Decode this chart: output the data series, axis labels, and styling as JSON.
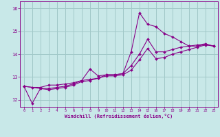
{
  "xlabel": "Windchill (Refroidissement éolien,°C)",
  "bg_color": "#c8e8e8",
  "grid_color": "#a0c8c8",
  "line_color": "#880088",
  "xlim": [
    -0.5,
    23.5
  ],
  "ylim": [
    11.7,
    16.3
  ],
  "yticks": [
    12,
    13,
    14,
    15,
    16
  ],
  "xticks": [
    0,
    1,
    2,
    3,
    4,
    5,
    6,
    7,
    8,
    9,
    10,
    11,
    12,
    13,
    14,
    15,
    16,
    17,
    18,
    19,
    20,
    21,
    22,
    23
  ],
  "series1_x": [
    0,
    1,
    2,
    3,
    4,
    5,
    6,
    7,
    8,
    9,
    10,
    11,
    12,
    13,
    14,
    15,
    16,
    17,
    18,
    19,
    20,
    21,
    22,
    23
  ],
  "series1_y": [
    12.6,
    12.55,
    12.55,
    12.65,
    12.65,
    12.7,
    12.75,
    12.85,
    13.35,
    13.05,
    13.1,
    13.1,
    13.15,
    14.1,
    15.8,
    15.3,
    15.2,
    14.9,
    14.75,
    14.55,
    14.35,
    14.4,
    14.45,
    14.35
  ],
  "series2_x": [
    0,
    1,
    2,
    3,
    4,
    5,
    6,
    7,
    8,
    9,
    10,
    11,
    12,
    13,
    14,
    15,
    16,
    17,
    18,
    19,
    20,
    21,
    22,
    23
  ],
  "series2_y": [
    12.6,
    11.85,
    12.5,
    12.45,
    12.5,
    12.55,
    12.65,
    12.8,
    12.85,
    12.95,
    13.05,
    13.05,
    13.1,
    13.3,
    13.75,
    14.25,
    13.8,
    13.85,
    14.0,
    14.1,
    14.2,
    14.3,
    14.4,
    14.35
  ],
  "series3_x": [
    0,
    2,
    3,
    4,
    5,
    6,
    7,
    8,
    9,
    10,
    11,
    12,
    13,
    14,
    15,
    16,
    17,
    18,
    19,
    20,
    21,
    22,
    23
  ],
  "series3_y": [
    12.6,
    12.5,
    12.5,
    12.55,
    12.6,
    12.7,
    12.85,
    12.9,
    12.95,
    13.1,
    13.1,
    13.15,
    13.5,
    14.0,
    14.65,
    14.1,
    14.1,
    14.2,
    14.3,
    14.35,
    14.35,
    14.42,
    14.35
  ]
}
